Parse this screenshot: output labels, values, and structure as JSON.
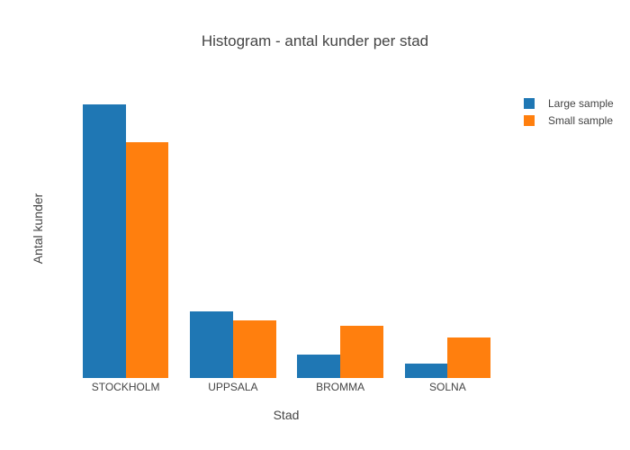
{
  "chart_data": {
    "type": "bar",
    "title": "Histogram - antal kunder per stad",
    "xlabel": "Stad",
    "ylabel": "Antal kunder",
    "categories": [
      "STOCKHOLM",
      "UPPSALA",
      "BROMMA",
      "SOLNA"
    ],
    "series": [
      {
        "name": "Large sample",
        "color": "#1f77b4",
        "values": [
          95,
          23,
          8,
          5
        ]
      },
      {
        "name": "Small sample",
        "color": "#ff7f0e",
        "values": [
          82,
          20,
          18,
          14
        ]
      }
    ],
    "ylim": [
      0,
      100
    ],
    "grid": false,
    "y_tick_labels_visible": false,
    "legend_position": "right",
    "bar_group_fraction": 0.8,
    "background": "#ffffff",
    "text_color": "#444444"
  }
}
